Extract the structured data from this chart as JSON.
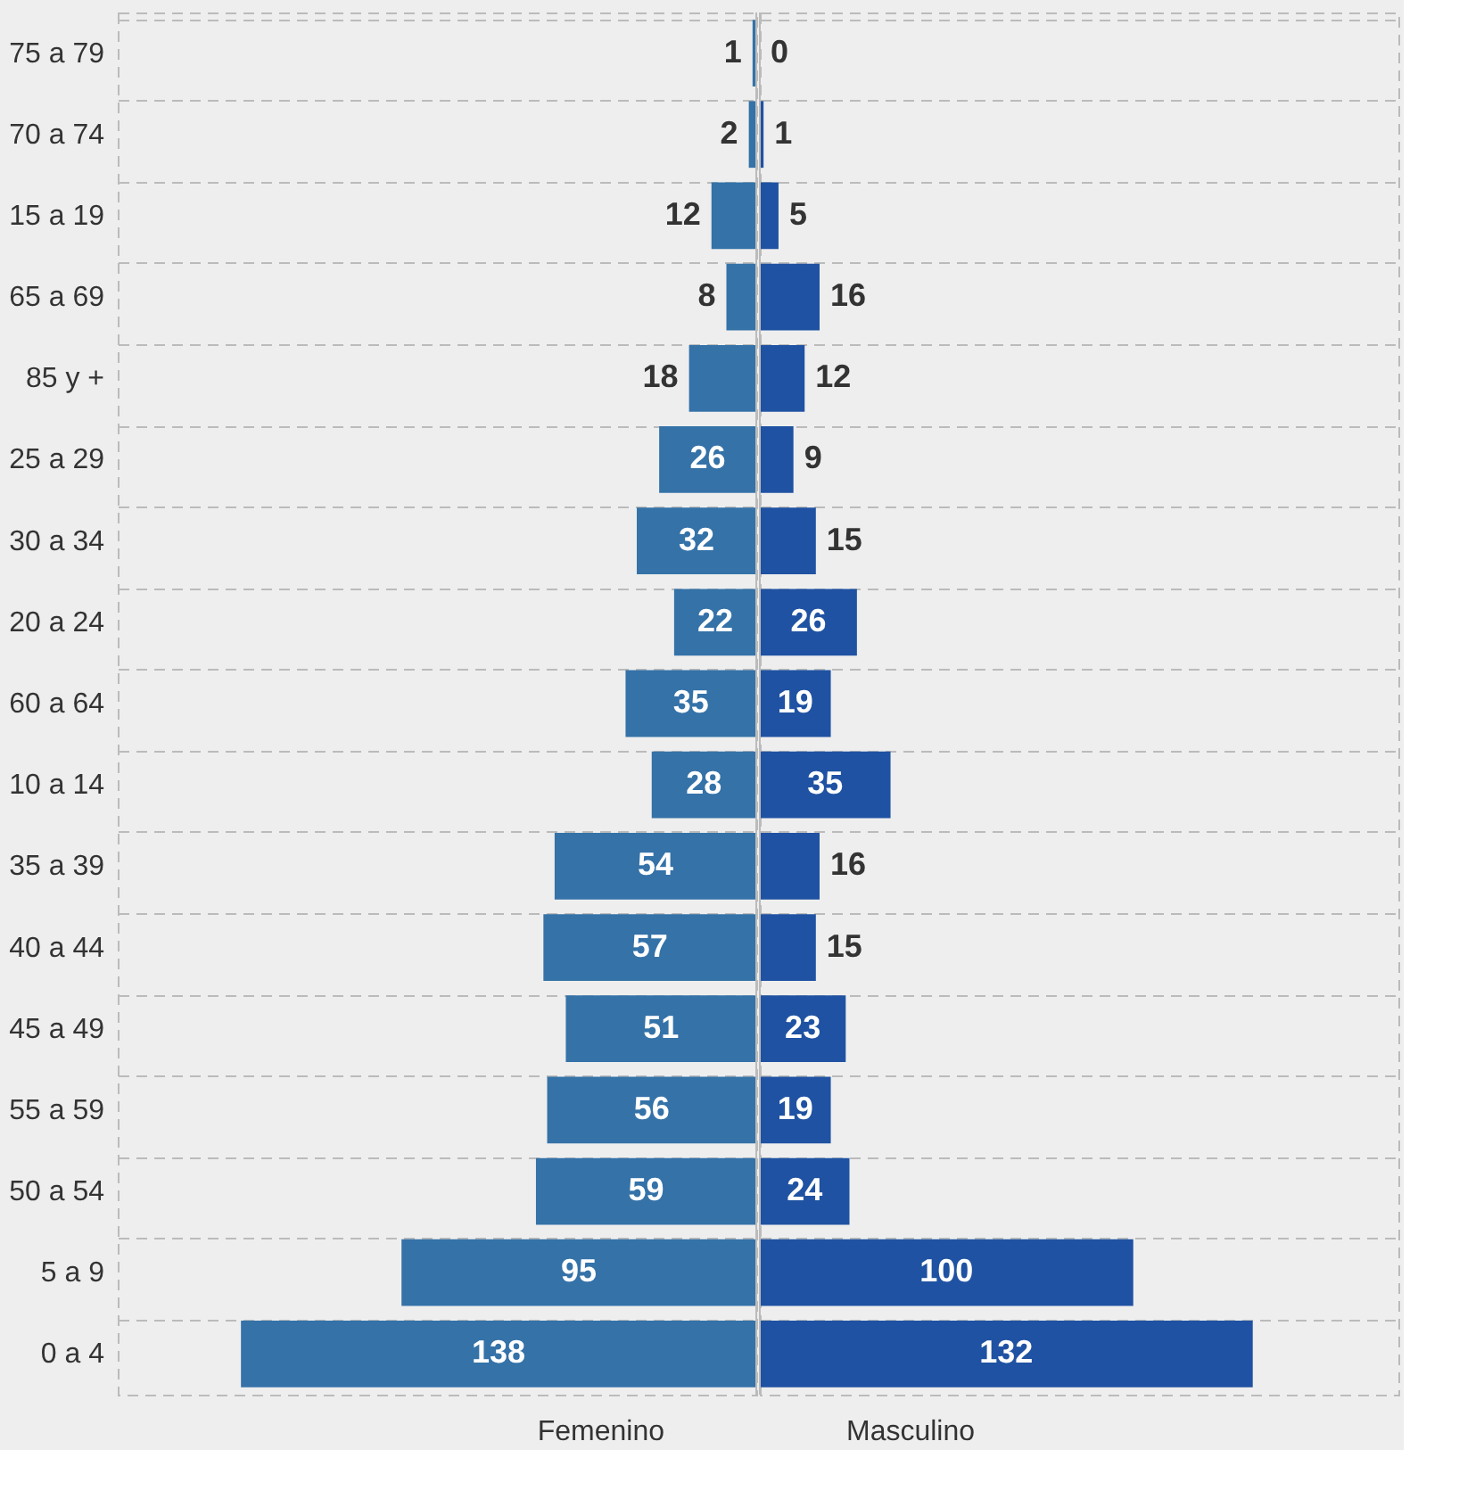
{
  "chart_data": [
    {
      "type": "bar",
      "orientation": "horizontal",
      "categories": [
        "75 a 79",
        "70 a 74",
        "15 a 19",
        "65 a 69",
        "85 y +",
        "25 a 29",
        "30 a 34",
        "20 a 24",
        "60 a 64",
        "10 a 14",
        "35 a 39",
        "40 a 44",
        "45 a 49",
        "55 a 59",
        "50 a 54",
        "5 a 9",
        "0 a 4"
      ],
      "xlabel": "Femenino",
      "color": "#3472a8",
      "values": [
        1,
        2,
        12,
        8,
        18,
        26,
        32,
        22,
        35,
        28,
        54,
        57,
        51,
        56,
        59,
        95,
        138
      ],
      "data_labels": true,
      "xlim": [
        171,
        0
      ],
      "tick_labels": "y",
      "grid": "y"
    },
    {
      "type": "bar",
      "orientation": "horizontal",
      "categories": [
        "75 a 79",
        "70 a 74",
        "15 a 19",
        "65 a 69",
        "85 y +",
        "25 a 29",
        "30 a 34",
        "20 a 24",
        "60 a 64",
        "10 a 14",
        "35 a 39",
        "40 a 44",
        "45 a 49",
        "55 a 59",
        "50 a 54",
        "5 a 9",
        "0 a 4"
      ],
      "xlabel": "Masculino",
      "color": "#1f52a2",
      "values": [
        0,
        1,
        5,
        16,
        12,
        9,
        15,
        26,
        19,
        35,
        16,
        15,
        23,
        19,
        24,
        100,
        132
      ],
      "data_labels": true,
      "xlim": [
        0,
        171
      ],
      "tick_labels": false,
      "grid": "y"
    }
  ]
}
